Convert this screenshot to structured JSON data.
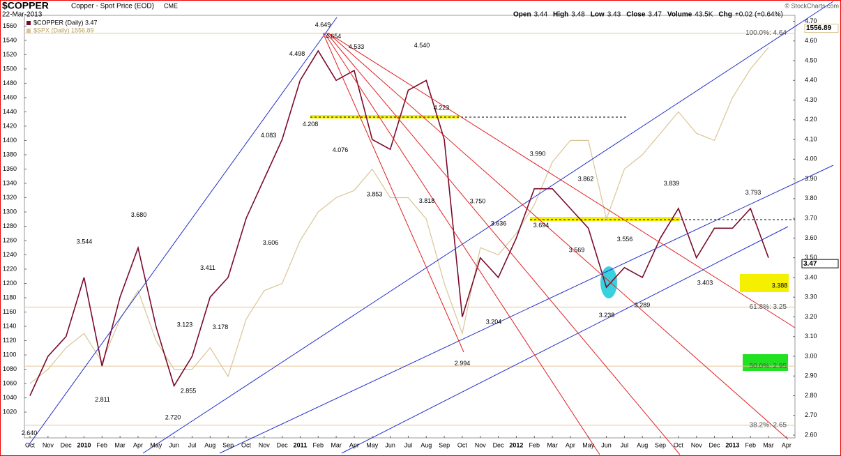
{
  "header": {
    "symbol": "$COPPER",
    "description": "Copper - Spot Price (EOD)",
    "exchange": "CME",
    "date": "22-Mar-2013",
    "quote": [
      {
        "name": "Open",
        "text": "3.44"
      },
      {
        "name": "High",
        "text": "3.48"
      },
      {
        "name": "Low",
        "text": "3.43"
      },
      {
        "name": "Close",
        "text": "3.47"
      },
      {
        "name": "Volume",
        "text": "43.5K"
      },
      {
        "name": "Chg",
        "text": "+0.02 (+0.64%)"
      }
    ],
    "credit": "© StockCharts.com"
  },
  "chart_data": {
    "type": "line",
    "categories": [
      "Oct",
      "Nov",
      "Dec",
      "2010",
      "Feb",
      "Mar",
      "Apr",
      "May",
      "Jun",
      "Jul",
      "Aug",
      "Sep",
      "Oct",
      "Nov",
      "Dec",
      "2011",
      "Feb",
      "Mar",
      "Apr",
      "May",
      "Jun",
      "Jul",
      "Aug",
      "Sep",
      "Oct",
      "Nov",
      "Dec",
      "2012",
      "Feb",
      "Mar",
      "Apr",
      "May",
      "Jun",
      "Jul",
      "Aug",
      "Sep",
      "Oct",
      "Nov",
      "Dec",
      "2013",
      "Feb",
      "Mar",
      "Apr"
    ],
    "series": [
      {
        "name": "$SPX (Daily) 1556.89",
        "color": "#d9c596",
        "values": [
          1060,
          1080,
          1110,
          1130,
          1090,
          1150,
          1190,
          1120,
          1080,
          1080,
          1110,
          1070,
          1150,
          1190,
          1200,
          1260,
          1300,
          1320,
          1330,
          1360,
          1320,
          1320,
          1290,
          1200,
          1130,
          1250,
          1240,
          1270,
          1310,
          1370,
          1400,
          1400,
          1290,
          1360,
          1380,
          1410,
          1440,
          1410,
          1400,
          1460,
          1500,
          1530,
          null
        ]
      },
      {
        "name": "$COPPER (Daily) 3.47",
        "color": "#7a0a2a",
        "axis": "y2",
        "values": [
          2.8,
          3.0,
          3.1,
          3.4,
          2.95,
          3.3,
          3.55,
          3.15,
          2.85,
          3.0,
          3.3,
          3.4,
          3.7,
          3.9,
          4.1,
          4.4,
          4.55,
          4.4,
          4.45,
          4.1,
          4.05,
          4.35,
          4.4,
          4.1,
          3.2,
          3.5,
          3.4,
          3.6,
          3.85,
          3.85,
          3.75,
          3.65,
          3.35,
          3.45,
          3.4,
          3.6,
          3.75,
          3.5,
          3.65,
          3.65,
          3.75,
          3.5,
          null
        ]
      }
    ],
    "ylim": [
      984,
      1575
    ],
    "yticks": [
      1020,
      1040,
      1060,
      1080,
      1100,
      1120,
      1140,
      1160,
      1180,
      1200,
      1220,
      1240,
      1260,
      1280,
      1300,
      1320,
      1340,
      1360,
      1380,
      1400,
      1420,
      1440,
      1460,
      1480,
      1500,
      1520,
      1540,
      1560
    ],
    "y2lim": [
      2.586,
      4.73
    ],
    "y2ticks": [
      {
        "value": 2.6,
        "label": "2.60"
      },
      {
        "value": 2.7,
        "label": "2.70"
      },
      {
        "value": 2.8,
        "label": "2.80"
      },
      {
        "value": 2.9,
        "label": "2.90"
      },
      {
        "value": 3.0,
        "label": "3.00"
      },
      {
        "value": 3.1,
        "label": "3.10"
      },
      {
        "value": 3.2,
        "label": "3.20"
      },
      {
        "value": 3.3,
        "label": "3.30"
      },
      {
        "value": 3.4,
        "label": "3.40"
      },
      {
        "value": 3.5,
        "label": "3.50"
      },
      {
        "value": 3.6,
        "label": "3.60"
      },
      {
        "value": 3.7,
        "label": "3.70"
      },
      {
        "value": 3.8,
        "label": "3.80"
      },
      {
        "value": 3.9,
        "label": "3.90"
      },
      {
        "value": 4.0,
        "label": "4.00"
      },
      {
        "value": 4.1,
        "label": "4.10"
      },
      {
        "value": 4.2,
        "label": "4.20"
      },
      {
        "value": 4.3,
        "label": "4.30"
      },
      {
        "value": 4.4,
        "label": "4.40"
      },
      {
        "value": 4.5,
        "label": "4.50"
      },
      {
        "value": 4.6,
        "label": "4.60"
      },
      {
        "value": 4.7,
        "label": "4.70"
      }
    ],
    "annotations": [
      {
        "label": "2.640",
        "value": 2.64
      },
      {
        "label": "2.811",
        "value": 2.811
      },
      {
        "label": "3.544",
        "value": 3.544
      },
      {
        "label": "3.680",
        "value": 3.68
      },
      {
        "label": "2.720",
        "value": 2.72
      },
      {
        "label": "2.855",
        "value": 2.855
      },
      {
        "label": "3.123",
        "value": 3.123
      },
      {
        "label": "3.178",
        "value": 3.178
      },
      {
        "label": "3.411",
        "value": 3.411
      },
      {
        "label": "3.606",
        "value": 3.606
      },
      {
        "label": "4.083",
        "value": 4.083
      },
      {
        "label": "4.498",
        "value": 4.498
      },
      {
        "label": "4.649",
        "value": 4.649
      },
      {
        "label": "4.654",
        "value": 4.654
      },
      {
        "label": "4.533",
        "value": 4.533
      },
      {
        "label": "4.208",
        "value": 4.208
      },
      {
        "label": "4.076",
        "value": 4.076
      },
      {
        "label": "4.540",
        "value": 4.54
      },
      {
        "label": "4.223",
        "value": 4.223
      },
      {
        "label": "3.853",
        "value": 3.853
      },
      {
        "label": "3.818",
        "value": 3.818
      },
      {
        "label": "3.750",
        "value": 3.75
      },
      {
        "label": "3.636",
        "value": 3.636
      },
      {
        "label": "2.994",
        "value": 2.994
      },
      {
        "label": "3.204",
        "value": 3.204
      },
      {
        "label": "3.990",
        "value": 3.99
      },
      {
        "label": "3.862",
        "value": 3.862
      },
      {
        "label": "3.694",
        "value": 3.694
      },
      {
        "label": "3.569",
        "value": 3.569
      },
      {
        "label": "3.556",
        "value": 3.556
      },
      {
        "label": "3.238",
        "value": 3.238
      },
      {
        "label": "3.289",
        "value": 3.289
      },
      {
        "label": "3.839",
        "value": 3.839
      },
      {
        "label": "3.403",
        "value": 3.403
      },
      {
        "label": "3.793",
        "value": 3.793
      },
      {
        "label": "3.388",
        "value": 3.388
      }
    ],
    "levels": [
      {
        "label": "100.0%: 4.64",
        "value": 4.64
      },
      {
        "label": "61.8%: 3.25",
        "value": 3.25
      },
      {
        "label": "50.0%: 2.95",
        "value": 2.95
      },
      {
        "label": "38.2%: 2.65",
        "value": 2.65
      }
    ],
    "last_y": {
      "value": 1556.89,
      "label": "1556.89"
    },
    "last_y2": {
      "value": 3.47,
      "label": "3.47"
    }
  }
}
